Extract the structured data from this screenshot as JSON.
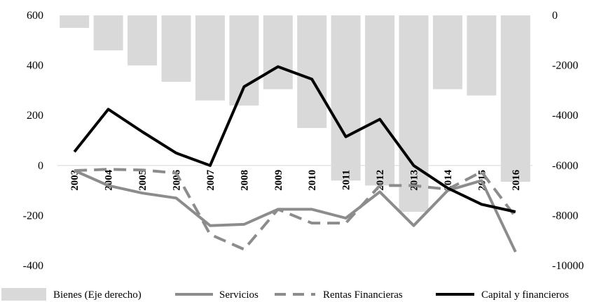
{
  "chart_data": {
    "type": "bar+line",
    "categories": [
      "2003",
      "2004",
      "2005",
      "2006",
      "2007",
      "2008",
      "2009",
      "2010",
      "2011",
      "2012",
      "2013",
      "2014",
      "2015",
      "2016"
    ],
    "y_left": {
      "min": -400,
      "max": 600,
      "ticks": [
        "600",
        "400",
        "200",
        "0",
        "-200",
        "-400"
      ]
    },
    "y_right": {
      "min": -10000,
      "max": 0,
      "ticks": [
        "0",
        "-2000",
        "-4000",
        "-6000",
        "-8000",
        "-10000"
      ]
    },
    "bars": {
      "name": "Bienes (Eje derecho)",
      "axis": "right",
      "color": "#d9d9d9",
      "values": [
        -500,
        -1400,
        -2000,
        -2650,
        -3400,
        -3600,
        -2950,
        -4500,
        -6600,
        -6800,
        -7850,
        -2950,
        -3200,
        -6650
      ]
    },
    "series": [
      {
        "name": "Servicios",
        "axis": "left",
        "color": "#8c8c8c",
        "dash": "solid",
        "values": [
          -20,
          -80,
          -110,
          -130,
          -240,
          -235,
          -175,
          -175,
          -210,
          -105,
          -240,
          -100,
          -60,
          -345
        ]
      },
      {
        "name": "Rentas Financieras",
        "axis": "left",
        "color": "#8c8c8c",
        "dash": "dashed",
        "values": [
          -20,
          -15,
          -18,
          -30,
          -275,
          -335,
          -175,
          -230,
          -230,
          -80,
          -80,
          -95,
          -25,
          -205
        ]
      },
      {
        "name": "Capital y financieros",
        "axis": "left",
        "color": "#000000",
        "dash": "solid",
        "values": [
          55,
          225,
          135,
          50,
          0,
          315,
          395,
          345,
          115,
          185,
          0,
          -90,
          -155,
          -185
        ]
      }
    ],
    "legend_position": "bottom",
    "grid": false
  }
}
